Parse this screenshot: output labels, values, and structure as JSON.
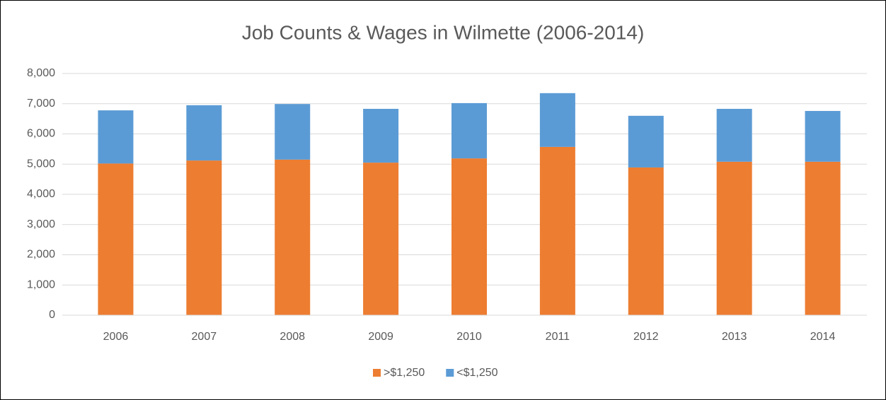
{
  "chart_data": {
    "type": "stacked_bar",
    "title": "Job Counts & Wages in Wilmette (2006-2014)",
    "categories": [
      "2006",
      "2007",
      "2008",
      "2009",
      "2010",
      "2011",
      "2012",
      "2013",
      "2014"
    ],
    "series": [
      {
        "name": ">$1,250",
        "color": "#ed7d31",
        "values": [
          5020,
          5120,
          5150,
          5050,
          5190,
          5570,
          4890,
          5080,
          5080
        ]
      },
      {
        "name": "<$1,250",
        "color": "#5b9bd5",
        "values": [
          1760,
          1830,
          1840,
          1780,
          1830,
          1780,
          1710,
          1750,
          1680
        ]
      }
    ],
    "ylim": [
      0,
      8000
    ],
    "yticks": [
      0,
      {
        "value": 1000,
        "label": "1,000"
      },
      {
        "value": 2000,
        "label": "2,000"
      },
      {
        "value": 3000,
        "label": "3,000"
      },
      {
        "value": 4000,
        "label": "4,000"
      },
      {
        "value": 5000,
        "label": "5,000"
      },
      {
        "value": 6000,
        "label": "6,000"
      },
      {
        "value": 7000,
        "label": "7,000"
      },
      {
        "value": 8000,
        "label": "8,000"
      }
    ],
    "grid": true,
    "legend": "bottom"
  }
}
